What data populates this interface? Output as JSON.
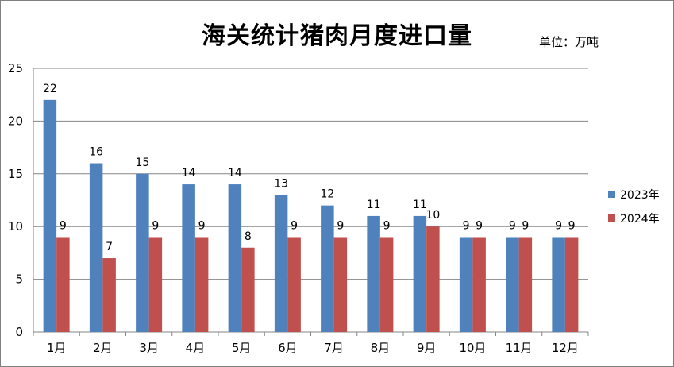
{
  "chart_data": {
    "type": "bar",
    "title": "海关统计猪肉月度进口量",
    "unit": "单位：万吨",
    "categories": [
      "1月",
      "2月",
      "3月",
      "4月",
      "5月",
      "6月",
      "7月",
      "8月",
      "9月",
      "10月",
      "11月",
      "12月"
    ],
    "series": [
      {
        "name": "2023年",
        "color": "#4f81bd",
        "values": [
          22,
          16,
          15,
          14,
          14,
          13,
          12,
          11,
          11,
          9,
          9,
          9
        ]
      },
      {
        "name": "2024年",
        "color": "#c0504d",
        "values": [
          9,
          7,
          9,
          9,
          8,
          9,
          9,
          9,
          10,
          9,
          9,
          9
        ]
      }
    ],
    "ylim": [
      0,
      25
    ],
    "yticks": [
      0,
      5,
      10,
      15,
      20,
      25
    ],
    "grid": true,
    "legend": "right"
  }
}
